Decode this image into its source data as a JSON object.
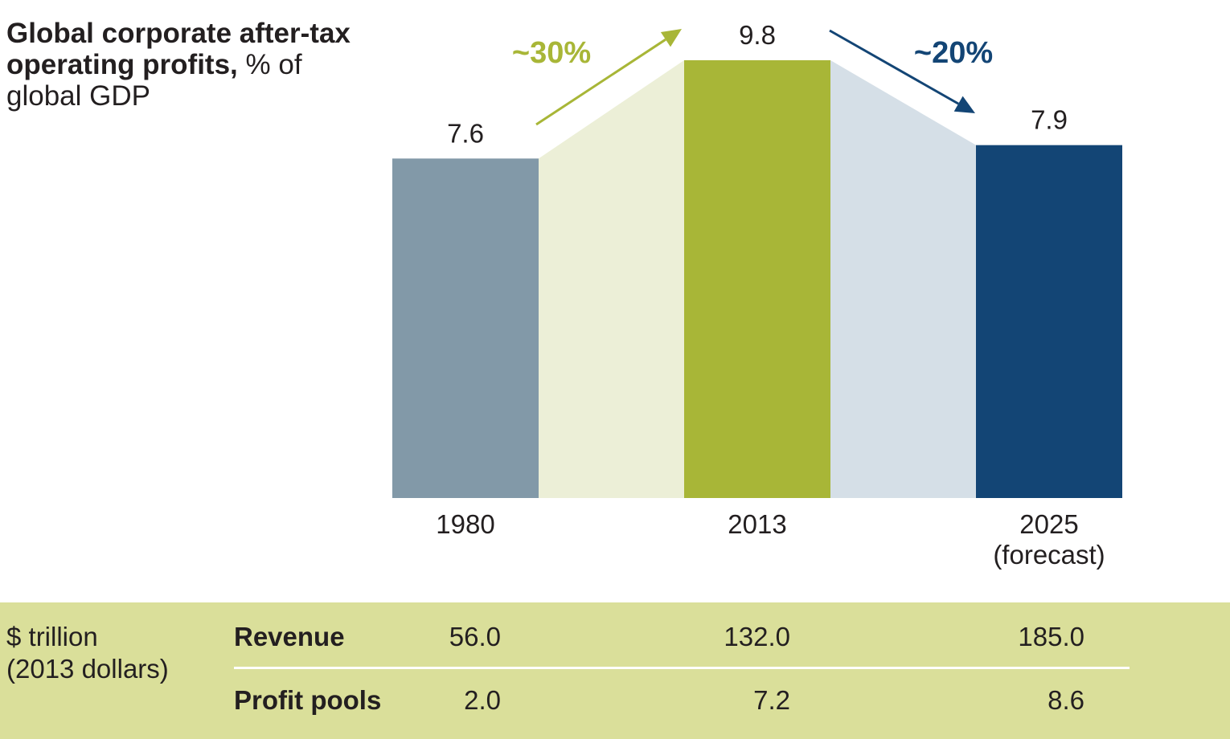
{
  "title": {
    "bold": "Global corporate after-tax operating profits,",
    "normal": " % of global GDP"
  },
  "chart_data": {
    "type": "bar",
    "title": "Global corporate after-tax operating profits, % of global GDP",
    "categories": [
      "1980",
      "2013",
      "2025"
    ],
    "category_sublabels": [
      "",
      "",
      "(forecast)"
    ],
    "values": [
      7.6,
      9.8,
      7.9
    ],
    "value_labels": [
      "7.6",
      "9.8",
      "7.9"
    ],
    "colors": [
      "#8299a8",
      "#a8b637",
      "#134575"
    ],
    "connector_colors": [
      "#ecefd7",
      "#d5dfe7"
    ],
    "ylim": [
      0,
      9.8
    ],
    "annotations": [
      {
        "text": "~30%",
        "color": "#a8b637",
        "direction": "up",
        "from": "1980",
        "to": "2013"
      },
      {
        "text": "~20%",
        "color": "#134575",
        "direction": "down",
        "from": "2013",
        "to": "2025"
      }
    ]
  },
  "table": {
    "unit_line1": "$ trillion",
    "unit_line2": "(2013 dollars)",
    "rows": [
      {
        "label": "Revenue",
        "values": [
          "56.0",
          "132.0",
          "185.0"
        ]
      },
      {
        "label": "Profit pools",
        "values": [
          "2.0",
          "7.2",
          "8.6"
        ]
      }
    ]
  }
}
